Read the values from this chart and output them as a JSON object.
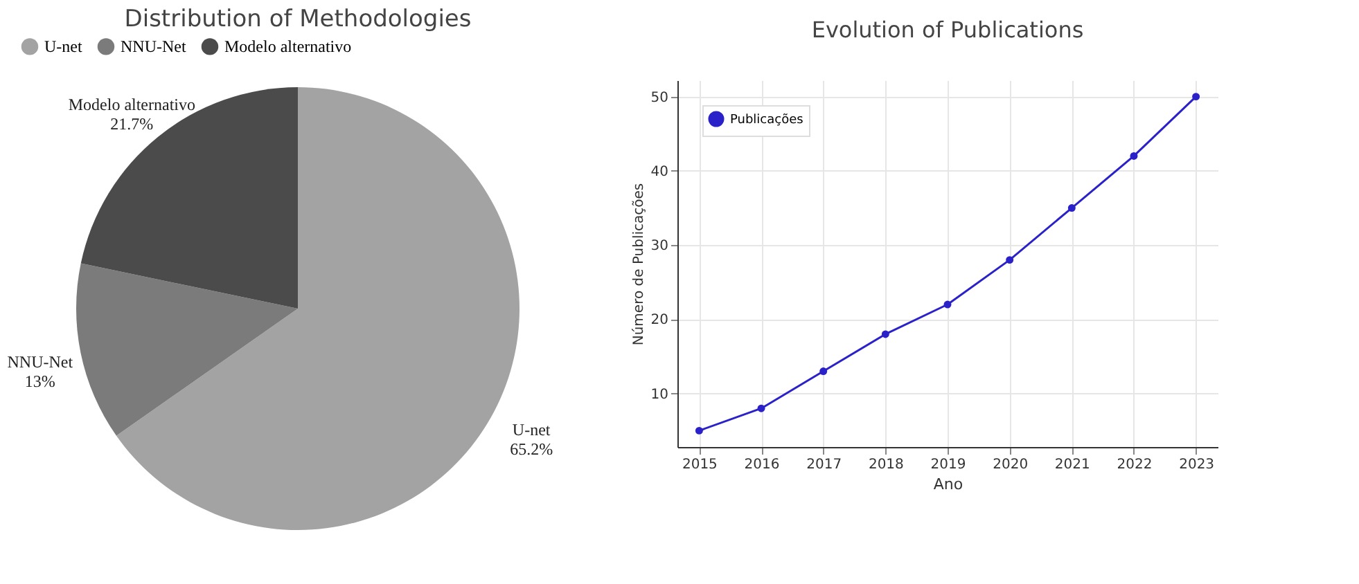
{
  "chart_data": [
    {
      "type": "pie",
      "title": "Distribution of Methodologies",
      "categories": [
        "U-net",
        "NNU-Net",
        "Modelo alternativo"
      ],
      "values": [
        65.2,
        13,
        21.7
      ],
      "colors": [
        "#a3a3a3",
        "#7b7b7b",
        "#4b4b4b"
      ],
      "value_labels": [
        "65.2%",
        "13%",
        "21.7%"
      ],
      "legend": "top"
    },
    {
      "type": "line",
      "title": "Evolution of Publications",
      "xlabel": "Ano",
      "ylabel": "Número de Publicações",
      "x": [
        2015,
        2016,
        2017,
        2018,
        2019,
        2020,
        2021,
        2022,
        2023
      ],
      "series": [
        {
          "name": "Publicações",
          "color": "#2a22c8",
          "values": [
            5,
            8,
            13,
            18,
            22,
            28,
            35,
            42,
            50
          ]
        }
      ],
      "xlim": [
        2014.65,
        2023.35
      ],
      "xticks": [
        2015,
        2016,
        2017,
        2018,
        2019,
        2020,
        2021,
        2022,
        2023
      ],
      "ylim": [
        2.8,
        52.2
      ],
      "yticks": [
        10,
        20,
        30,
        40,
        50
      ],
      "grid": true,
      "legend": "top left",
      "marker": "circle",
      "line_style": "solid"
    }
  ]
}
